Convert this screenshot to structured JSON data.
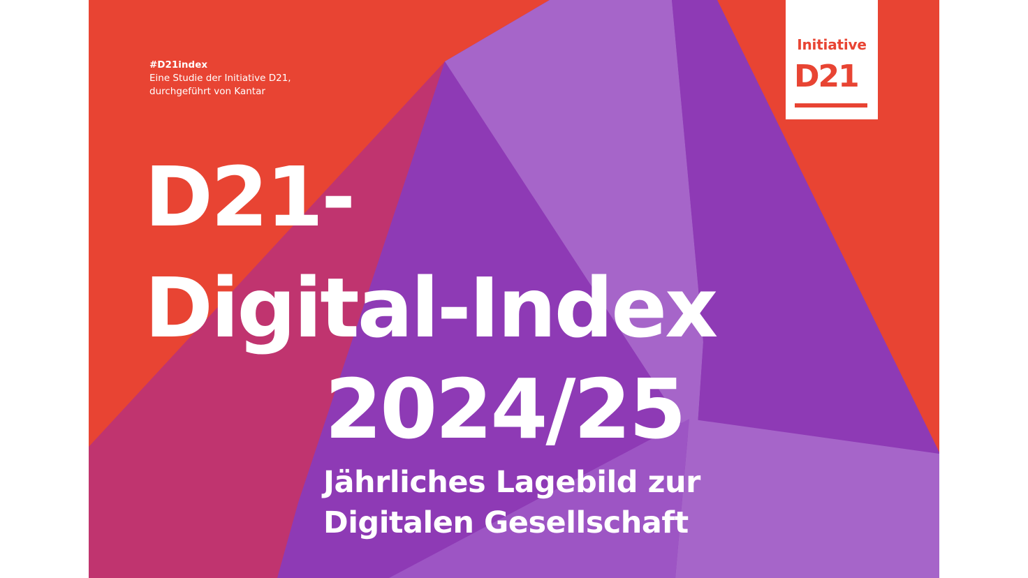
{
  "meta": {
    "hashtag": "#D21index",
    "line1": "Eine Studie der Initiative D21,",
    "line2": "durchgeführt von Kantar"
  },
  "logo": {
    "line1": "Initiative",
    "line2": "D21"
  },
  "title": {
    "line1": "D21-",
    "line2": "Digital-Index",
    "line3": "2024/25"
  },
  "subtitle": {
    "line1": "Jährliches Lagebild zur",
    "line2": "Digitalen Gesellschaft"
  },
  "colors": {
    "red": "#e84433",
    "magenta": "#c0346f",
    "purple": "#8e3ab5",
    "lavender": "#a665c9"
  }
}
